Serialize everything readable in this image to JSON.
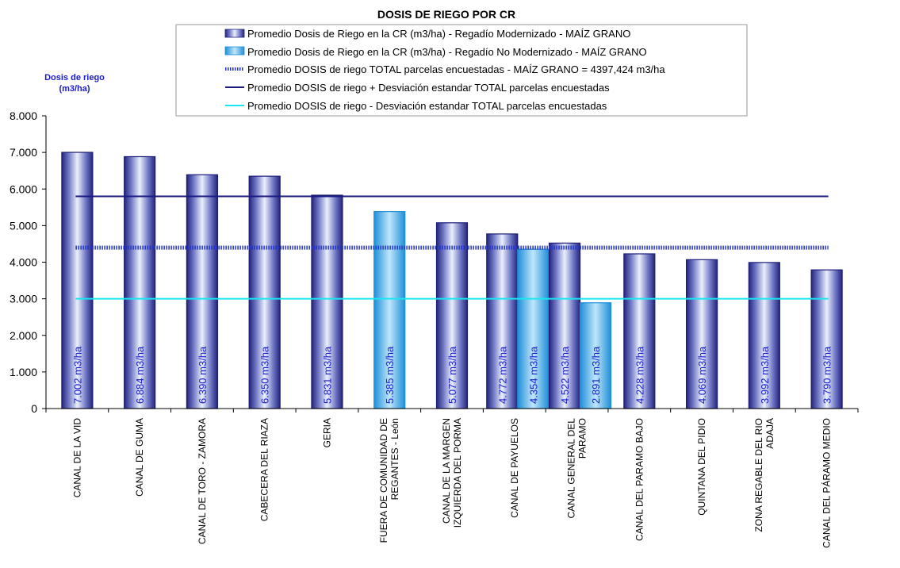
{
  "chart_data": {
    "type": "bar",
    "title": "DOSIS DE RIEGO POR CR",
    "ylabel_lines": [
      "Dosis de riego",
      "(m3/ha)"
    ],
    "ylim": [
      0,
      8000
    ],
    "yticks": [
      "0",
      "1.000",
      "2.000",
      "3.000",
      "4.000",
      "5.000",
      "6.000",
      "7.000",
      "8.000"
    ],
    "categories": [
      [
        "CANAL DE LA VID"
      ],
      [
        "CANAL DE GUMA"
      ],
      [
        "CANAL DE TORO - ZAMORA"
      ],
      [
        "CABECERA DEL RIAZA"
      ],
      [
        "GERIA"
      ],
      [
        "FUERA DE COMUNIDAD DE",
        "REGANTES - León"
      ],
      [
        "CANAL DE LA MARGEN",
        "IZQUIERDA DEL PORMA"
      ],
      [
        "CANAL DE PAYUELOS"
      ],
      [
        "CANAL GENERAL DEL",
        "PARAMO"
      ],
      [
        "CANAL DEL PARAMO BAJO"
      ],
      [
        "QUINTANA DEL PIDIO"
      ],
      [
        "ZONA REGABLE DEL RIO",
        "ADAJA"
      ],
      [
        "CANAL DEL PÁRAMO MEDIO"
      ]
    ],
    "series": [
      {
        "name": "Promedio Dosis de Riego en la CR (m3/ha) - Regadío Modernizado - MAÍZ GRANO",
        "color": "#3a3aa0",
        "values": [
          7002,
          6884,
          6390,
          6350,
          5831,
          null,
          5077,
          4772,
          4522,
          4228,
          4069,
          3992,
          3790
        ],
        "labels": [
          "7.002 m3/ha",
          "6.884 m3/ha",
          "6.390 m3/ha",
          "6.350 m3/ha",
          "5.831 m3/ha",
          null,
          "5.077 m3/ha",
          "4.772 m3/ha",
          "4.522 m3/ha",
          "4.228 m3/ha",
          "4.069 m3/ha",
          "3.992 m3/ha",
          "3.790 m3/ha"
        ]
      },
      {
        "name": "Promedio Dosis de Riego en la CR (m3/ha) - Regadío No Modernizado - MAÍZ GRANO",
        "color": "#2fa8e8",
        "values": [
          null,
          null,
          null,
          null,
          null,
          5385,
          null,
          4354,
          2891,
          null,
          null,
          null,
          null
        ],
        "labels": [
          null,
          null,
          null,
          null,
          null,
          "5.385 m3/ha",
          null,
          "4.354 m3/ha",
          "2.891 m3/ha",
          null,
          null,
          null,
          null
        ]
      }
    ],
    "reference_lines": [
      {
        "name": "Promedio DOSIS de riego TOTAL parcelas encuestadas - MAÍZ GRANO = 4397,424 m3/ha",
        "value": 4397.424,
        "color": "#2233cc",
        "style": "thick-dotted"
      },
      {
        "name": "Promedio DOSIS de riego + Desviación estandar TOTAL parcelas encuestadas",
        "value": 5800,
        "color": "#1a1a80",
        "style": "solid"
      },
      {
        "name": "Promedio DOSIS de riego - Desviación estandar TOTAL parcelas encuestadas",
        "value": 3000,
        "color": "#19e6f0",
        "style": "solid"
      }
    ],
    "legend_position": "top-center",
    "grid": false
  }
}
